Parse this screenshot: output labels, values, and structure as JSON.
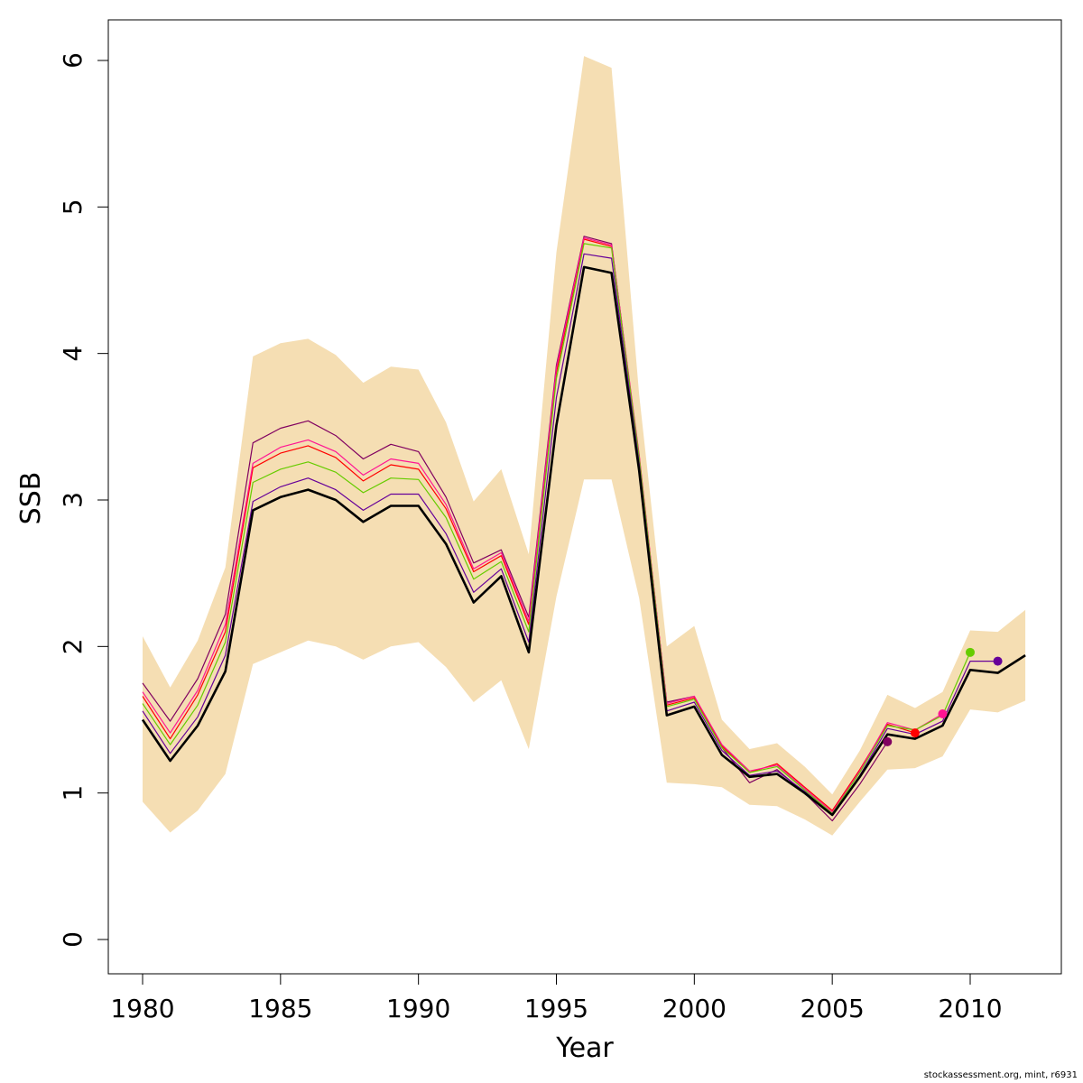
{
  "chart_data": {
    "type": "line",
    "title": "",
    "xlabel": "Year",
    "ylabel": "SSB",
    "xlim": [
      1980,
      2012
    ],
    "ylim": [
      0,
      6
    ],
    "x_ticks": [
      "1980",
      "1985",
      "1990",
      "1995",
      "2000",
      "2005",
      "2010"
    ],
    "y_ticks": [
      "0",
      "1",
      "2",
      "3",
      "4",
      "5",
      "6"
    ],
    "colors": {
      "band": "#f5deb3",
      "main": "#000000"
    },
    "years": [
      1980,
      1981,
      1982,
      1983,
      1984,
      1985,
      1986,
      1987,
      1988,
      1989,
      1990,
      1991,
      1992,
      1993,
      1994,
      1995,
      1996,
      1997,
      1998,
      1999,
      2000,
      2001,
      2002,
      2003,
      2004,
      2005,
      2006,
      2007,
      2008,
      2009,
      2010,
      2011,
      2012
    ],
    "band": {
      "upper": [
        2.07,
        1.72,
        2.04,
        2.54,
        3.98,
        4.07,
        4.1,
        3.99,
        3.8,
        3.91,
        3.89,
        3.53,
        2.99,
        3.21,
        2.63,
        4.69,
        6.03,
        5.95,
        3.72,
        2.0,
        2.14,
        1.5,
        1.3,
        1.34,
        1.18,
        0.99,
        1.29,
        1.67,
        1.58,
        1.69,
        2.11,
        2.1,
        2.25
      ],
      "lower": [
        0.94,
        0.73,
        0.88,
        1.13,
        1.88,
        1.96,
        2.04,
        2.0,
        1.91,
        2.0,
        2.03,
        1.86,
        1.62,
        1.77,
        1.3,
        2.34,
        3.14,
        3.14,
        2.33,
        1.07,
        1.06,
        1.04,
        0.92,
        0.91,
        0.82,
        0.71,
        0.94,
        1.16,
        1.17,
        1.25,
        1.57,
        1.55,
        1.63
      ]
    },
    "main": {
      "values": [
        1.5,
        1.22,
        1.46,
        1.83,
        2.93,
        3.02,
        3.07,
        3.0,
        2.85,
        2.96,
        2.96,
        2.7,
        2.3,
        2.48,
        1.96,
        3.51,
        4.59,
        4.55,
        3.2,
        1.53,
        1.59,
        1.26,
        1.11,
        1.13,
        1.0,
        0.85,
        1.11,
        1.4,
        1.37,
        1.46,
        1.84,
        1.82,
        1.94
      ]
    },
    "retrospective": [
      {
        "color": "#800060",
        "end_year": 2007,
        "values": [
          1.75,
          1.49,
          1.78,
          2.22,
          3.39,
          3.49,
          3.54,
          3.44,
          3.28,
          3.38,
          3.33,
          3.02,
          2.57,
          2.66,
          2.2,
          3.92,
          4.8,
          4.75,
          3.28,
          1.62,
          1.66,
          1.31,
          1.07,
          1.16,
          1.0,
          0.81,
          1.06,
          1.35
        ]
      },
      {
        "color": "#ff0000",
        "end_year": 2008,
        "values": [
          1.66,
          1.37,
          1.67,
          2.1,
          3.22,
          3.32,
          3.37,
          3.29,
          3.13,
          3.24,
          3.21,
          2.94,
          2.51,
          2.62,
          2.15,
          3.87,
          4.78,
          4.73,
          3.3,
          1.6,
          1.65,
          1.32,
          1.14,
          1.2,
          1.04,
          0.88,
          1.16,
          1.47,
          1.41
        ]
      },
      {
        "color": "#ff1493",
        "end_year": 2009,
        "values": [
          1.69,
          1.41,
          1.7,
          2.15,
          3.25,
          3.36,
          3.41,
          3.33,
          3.17,
          3.28,
          3.25,
          2.97,
          2.53,
          2.64,
          2.17,
          3.9,
          4.79,
          4.74,
          3.31,
          1.61,
          1.66,
          1.33,
          1.15,
          1.19,
          1.03,
          0.87,
          1.15,
          1.48,
          1.43,
          1.54
        ]
      },
      {
        "color": "#66cc00",
        "end_year": 2010,
        "values": [
          1.61,
          1.33,
          1.6,
          2.03,
          3.12,
          3.21,
          3.26,
          3.19,
          3.05,
          3.15,
          3.14,
          2.88,
          2.46,
          2.58,
          2.1,
          3.83,
          4.75,
          4.72,
          3.29,
          1.59,
          1.64,
          1.31,
          1.14,
          1.18,
          1.02,
          0.86,
          1.14,
          1.46,
          1.43,
          1.53,
          1.96
        ]
      },
      {
        "color": "#660099",
        "end_year": 2011,
        "values": [
          1.56,
          1.27,
          1.52,
          1.94,
          2.99,
          3.09,
          3.15,
          3.07,
          2.93,
          3.04,
          3.04,
          2.77,
          2.37,
          2.53,
          2.03,
          3.7,
          4.68,
          4.65,
          3.25,
          1.56,
          1.62,
          1.29,
          1.12,
          1.15,
          1.01,
          0.85,
          1.12,
          1.44,
          1.4,
          1.49,
          1.9,
          1.9
        ]
      }
    ]
  },
  "credit": "stockassessment.org, mint, r6931"
}
